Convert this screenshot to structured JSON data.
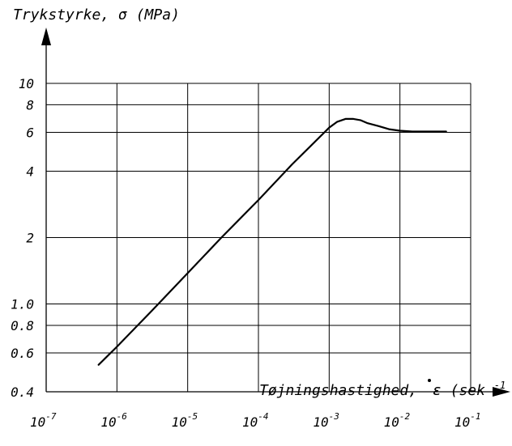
{
  "chart_data": {
    "type": "line",
    "ylabel": "Trykstyrke, σ (MPa)",
    "xlabel_text": "Tøjningshastighed,",
    "xlabel_symbol": "ε",
    "xlabel_unit_open": "(sek",
    "xlabel_unit_exp": "-1",
    "xlabel_unit_close": ")",
    "x_scale": "log",
    "y_scale": "log",
    "xlim": [
      1e-07,
      0.1
    ],
    "ylim": [
      0.4,
      10
    ],
    "x_ticks": [
      {
        "value": 1e-07,
        "base": "10",
        "exp": "-7"
      },
      {
        "value": 1e-06,
        "base": "10",
        "exp": "-6"
      },
      {
        "value": 1e-05,
        "base": "10",
        "exp": "-5"
      },
      {
        "value": 0.0001,
        "base": "10",
        "exp": "-4"
      },
      {
        "value": 0.001,
        "base": "10",
        "exp": "-3"
      },
      {
        "value": 0.01,
        "base": "10",
        "exp": "-2"
      },
      {
        "value": 0.1,
        "base": "10",
        "exp": "-1"
      }
    ],
    "y_ticks": [
      {
        "value": 0.4,
        "label": "0.4"
      },
      {
        "value": 0.6,
        "label": "0.6"
      },
      {
        "value": 0.8,
        "label": "0.8"
      },
      {
        "value": 1.0,
        "label": "1.0"
      },
      {
        "value": 2,
        "label": "2"
      },
      {
        "value": 4,
        "label": "4"
      },
      {
        "value": 6,
        "label": "6"
      },
      {
        "value": 8,
        "label": "8"
      },
      {
        "value": 10,
        "label": "10"
      }
    ],
    "grid": true,
    "series": [
      {
        "x": [
          5.5e-07,
          1e-06,
          3e-06,
          1e-05,
          3e-05,
          0.0001,
          0.0003,
          0.001,
          0.0013,
          0.0017,
          0.0022,
          0.0028,
          0.0035,
          0.005,
          0.007,
          0.01,
          0.015,
          0.02,
          0.03,
          0.045
        ],
        "y": [
          0.53,
          0.64,
          0.92,
          1.38,
          2.0,
          2.96,
          4.3,
          6.3,
          6.7,
          6.9,
          6.9,
          6.8,
          6.6,
          6.4,
          6.2,
          6.1,
          6.05,
          6.05,
          6.05,
          6.05
        ]
      }
    ]
  }
}
